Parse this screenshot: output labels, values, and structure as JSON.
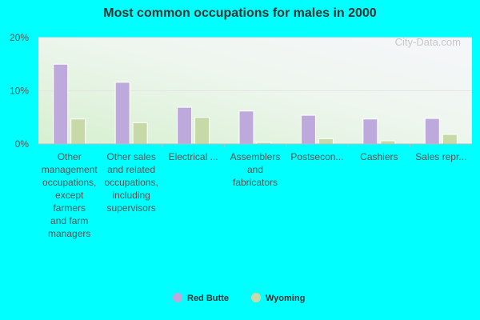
{
  "chart_data": {
    "type": "bar",
    "title": "Most common occupations for males in 2000",
    "xlabel": "",
    "ylabel": "",
    "ylim": [
      0,
      20
    ],
    "yticks": [
      "0%",
      "10%",
      "20%"
    ],
    "ytick_values": [
      0,
      10,
      20
    ],
    "categories": [
      "Other management occupations, except farmers and farm managers",
      "Other sales and related occupations, including supervisors",
      "Electrical ...",
      "Assemblers and fabricators",
      "Postsecon...",
      "Cashiers",
      "Sales repr..."
    ],
    "category_lines": [
      [
        "Other",
        "management",
        "occupations,",
        "except",
        "farmers",
        "and farm",
        "managers"
      ],
      [
        "Other sales",
        "and related",
        "occupations,",
        "including",
        "supervisors"
      ],
      [
        "Electrical ..."
      ],
      [
        "Assemblers",
        "and",
        "fabricators"
      ],
      [
        "Postsecon..."
      ],
      [
        "Cashiers"
      ],
      [
        "Sales repr..."
      ]
    ],
    "series": [
      {
        "name": "Red Butte",
        "color": "#bda9dc",
        "values": [
          15.0,
          11.6,
          6.9,
          6.2,
          5.4,
          4.7,
          4.8
        ]
      },
      {
        "name": "Wyoming",
        "color": "#c6d9a6",
        "values": [
          4.7,
          4.0,
          5.0,
          0.3,
          1.0,
          0.6,
          1.8
        ]
      }
    ],
    "grid": true,
    "legend_position": "bottom",
    "watermark": "City-Data.com"
  }
}
